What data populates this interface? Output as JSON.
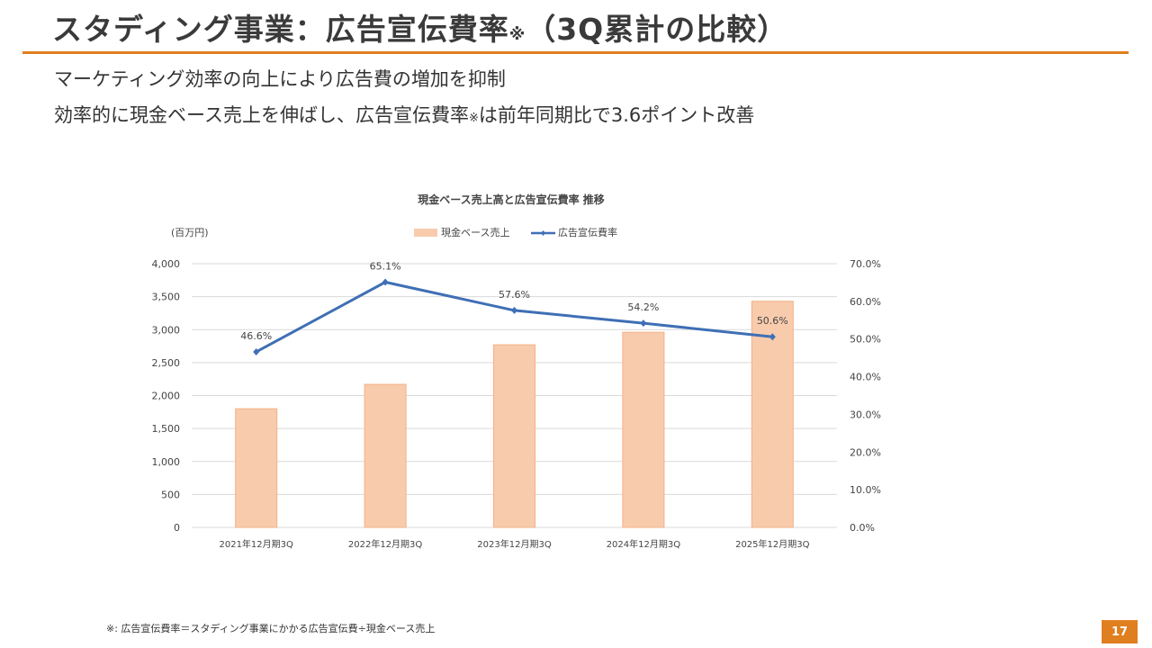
{
  "header": {
    "title_main": "スタディング事業：広告宣伝費率",
    "title_note": "※",
    "title_tail": "（3Q累計の比較）"
  },
  "subtitle": {
    "line1": "マーケティング効率の向上により広告費の増加を抑制",
    "line2_a": "効率的に現金ベース売上を伸ばし、広告宣伝費率",
    "line2_note": "※",
    "line2_b": "は前年同期比で3.6ポイント改善"
  },
  "chart_data": {
    "type": "bar",
    "title": "現金ベース売上高と広告宣伝費率 推移",
    "ylabel": "(百万円)",
    "categories": [
      "2021年12月期3Q",
      "2022年12月期3Q",
      "2023年12月期3Q",
      "2024年12月期3Q",
      "2025年12月期3Q"
    ],
    "series": [
      {
        "name": "現金ベース売上",
        "type": "bar",
        "axis": "left",
        "values": [
          1800,
          2170,
          2770,
          2960,
          3430
        ],
        "color": "#f8cbad"
      },
      {
        "name": "広告宣伝費率",
        "type": "line",
        "axis": "right",
        "values": [
          46.6,
          65.1,
          57.6,
          54.2,
          50.6
        ],
        "labels": [
          "46.6%",
          "65.1%",
          "57.6%",
          "54.2%",
          "50.6%"
        ],
        "color": "#3f6fb5"
      }
    ],
    "ylim": [
      0,
      4000
    ],
    "yticks": [
      "0",
      "500",
      "1,000",
      "1,500",
      "2,000",
      "2,500",
      "3,000",
      "3,500",
      "4,000"
    ],
    "y2lim": [
      0,
      70
    ],
    "y2ticks": [
      "0.0%",
      "10.0%",
      "20.0%",
      "30.0%",
      "40.0%",
      "50.0%",
      "60.0%",
      "70.0%"
    ],
    "grid": true,
    "legend": "top-center"
  },
  "footnote": "※: 広告宣伝費率＝スタディング事業にかかる広告宣伝費÷現金ベース売上",
  "page_number": "17"
}
